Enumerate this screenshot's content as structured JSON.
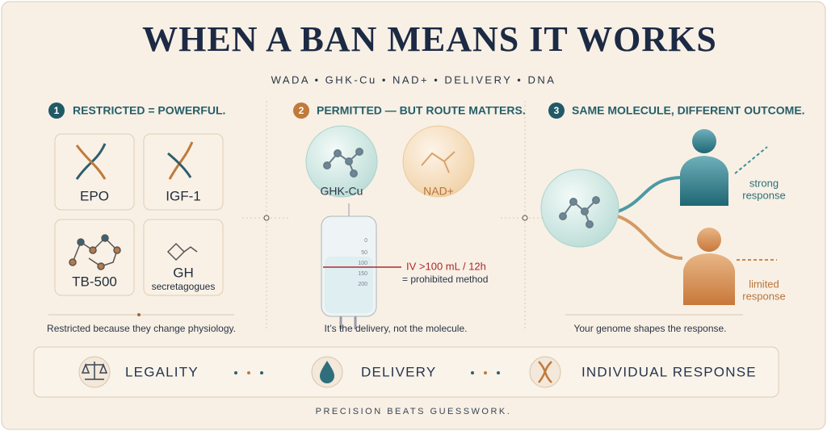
{
  "title": "WHEN A BAN MEANS IT WORKS",
  "subtitle": "WADA • GHK-Cu • NAD+ • DELIVERY • DNA",
  "panels": [
    {
      "number": "1",
      "heading": "RESTRICTED = POWERFUL.",
      "items": [
        "EPO",
        "IGF-1",
        "TB-500",
        "GH",
        "secretagogues"
      ],
      "caption": "Restricted because they change physiology."
    },
    {
      "number": "2",
      "heading": "PERMITTED — BUT ROUTE MATTERS.",
      "molecules": [
        "GHK-Cu",
        "NAD+"
      ],
      "scale": [
        "0",
        "50",
        "100",
        "150",
        "200"
      ],
      "annotation": "IV >100 mL / 12h",
      "annotation_note": "= prohibited method",
      "caption": "It’s the delivery, not the molecule."
    },
    {
      "number": "3",
      "heading": "SAME MOLECULE, DIFFERENT OUTCOME.",
      "strong": [
        "strong",
        "response"
      ],
      "limited": [
        "limited",
        "response"
      ],
      "caption": "Your genome shapes the response."
    }
  ],
  "pillars": [
    "LEGALITY",
    "DELIVERY",
    "INDIVIDUAL RESPONSE"
  ],
  "footer": "PRECISION BEATS GUESSWORK."
}
